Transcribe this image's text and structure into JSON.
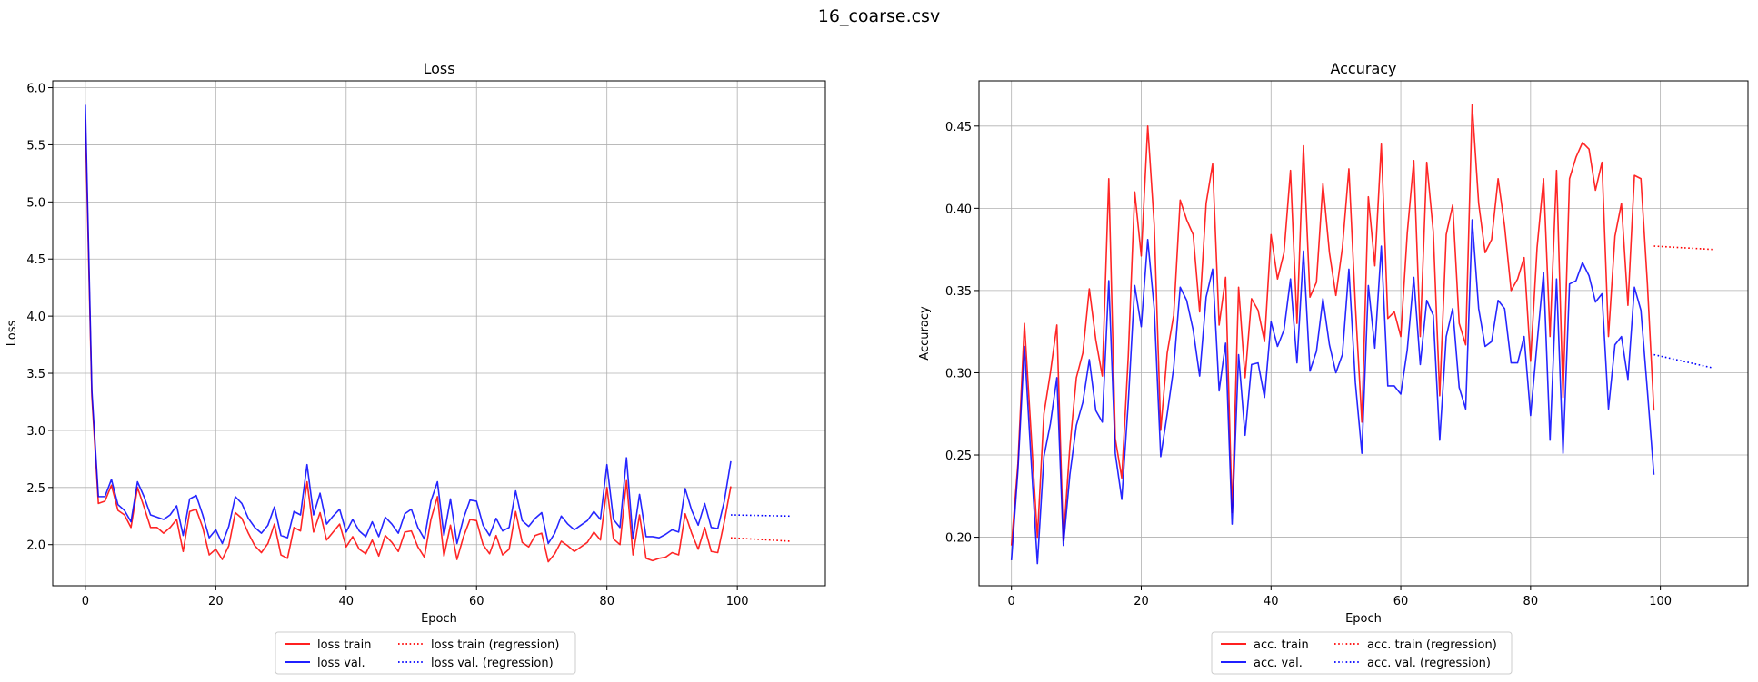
{
  "figure": {
    "title": "16_coarse.csv"
  },
  "chart_data": [
    {
      "type": "line",
      "title": "Loss",
      "xlabel": "Epoch",
      "ylabel": "Loss",
      "xlim": [
        -5,
        113.5
      ],
      "ylim": [
        1.64,
        6.06
      ],
      "xticks": [
        0,
        20,
        40,
        60,
        80,
        100
      ],
      "yticks": [
        2.0,
        2.5,
        3.0,
        3.5,
        4.0,
        4.5,
        5.0,
        5.5,
        6.0
      ],
      "ytick_labels": [
        "2.0",
        "2.5",
        "3.0",
        "3.5",
        "4.0",
        "4.5",
        "5.0",
        "5.5",
        "6.0"
      ],
      "grid": true,
      "legend_position": "below",
      "series": [
        {
          "name": "loss train",
          "color": "#ff0000",
          "style": "solid",
          "values": [
            5.72,
            3.3,
            2.36,
            2.38,
            2.52,
            2.3,
            2.26,
            2.15,
            2.5,
            2.33,
            2.15,
            2.15,
            2.1,
            2.15,
            2.22,
            1.94,
            2.29,
            2.31,
            2.15,
            1.91,
            1.96,
            1.87,
            1.99,
            2.28,
            2.23,
            2.1,
            1.99,
            1.93,
            2.01,
            2.18,
            1.91,
            1.88,
            2.15,
            2.12,
            2.55,
            2.11,
            2.28,
            2.04,
            2.11,
            2.18,
            1.98,
            2.07,
            1.96,
            1.92,
            2.04,
            1.9,
            2.08,
            2.02,
            1.94,
            2.11,
            2.12,
            1.98,
            1.89,
            2.22,
            2.42,
            1.9,
            2.17,
            1.87,
            2.07,
            2.22,
            2.21,
            2.0,
            1.92,
            2.08,
            1.91,
            1.96,
            2.29,
            2.02,
            1.98,
            2.08,
            2.1,
            1.85,
            1.92,
            2.03,
            1.99,
            1.94,
            1.98,
            2.02,
            2.11,
            2.04,
            2.5,
            2.05,
            2.0,
            2.56,
            1.91,
            2.26,
            1.88,
            1.86,
            1.88,
            1.89,
            1.93,
            1.91,
            2.27,
            2.1,
            1.96,
            2.15,
            1.94,
            1.93,
            2.2,
            2.51
          ]
        },
        {
          "name": "loss val.",
          "color": "#0000ff",
          "style": "solid",
          "values": [
            5.85,
            3.35,
            2.42,
            2.42,
            2.57,
            2.35,
            2.3,
            2.2,
            2.55,
            2.42,
            2.26,
            2.24,
            2.22,
            2.26,
            2.34,
            2.08,
            2.4,
            2.43,
            2.26,
            2.06,
            2.13,
            2.01,
            2.16,
            2.42,
            2.36,
            2.23,
            2.15,
            2.1,
            2.17,
            2.33,
            2.08,
            2.06,
            2.29,
            2.26,
            2.7,
            2.26,
            2.45,
            2.18,
            2.25,
            2.31,
            2.11,
            2.22,
            2.12,
            2.07,
            2.2,
            2.07,
            2.24,
            2.18,
            2.1,
            2.27,
            2.31,
            2.15,
            2.05,
            2.38,
            2.55,
            2.08,
            2.4,
            2.01,
            2.23,
            2.39,
            2.38,
            2.17,
            2.08,
            2.23,
            2.12,
            2.15,
            2.47,
            2.21,
            2.16,
            2.23,
            2.28,
            2.01,
            2.1,
            2.25,
            2.18,
            2.13,
            2.17,
            2.21,
            2.29,
            2.22,
            2.7,
            2.22,
            2.15,
            2.76,
            2.05,
            2.44,
            2.07,
            2.07,
            2.06,
            2.09,
            2.13,
            2.11,
            2.49,
            2.3,
            2.17,
            2.36,
            2.15,
            2.14,
            2.38,
            2.73
          ]
        },
        {
          "name": "loss train (regression)",
          "color": "#ff0000",
          "style": "dotted",
          "x": [
            99,
            108
          ],
          "values": [
            2.06,
            2.03
          ]
        },
        {
          "name": "loss val. (regression)",
          "color": "#0000ff",
          "style": "dotted",
          "x": [
            99,
            108
          ],
          "values": [
            2.26,
            2.25
          ]
        }
      ]
    },
    {
      "type": "line",
      "title": "Accuracy",
      "xlabel": "Epoch",
      "ylabel": "Accuracy",
      "xlim": [
        -5,
        113.5
      ],
      "ylim": [
        0.1705,
        0.4775
      ],
      "xticks": [
        0,
        20,
        40,
        60,
        80,
        100
      ],
      "yticks": [
        0.2,
        0.25,
        0.3,
        0.35,
        0.4,
        0.45
      ],
      "ytick_labels": [
        "0.20",
        "0.25",
        "0.30",
        "0.35",
        "0.40",
        "0.45"
      ],
      "grid": true,
      "legend_position": "below",
      "series": [
        {
          "name": "acc. train",
          "color": "#ff0000",
          "style": "solid",
          "values": [
            0.195,
            0.245,
            0.33,
            0.265,
            0.2,
            0.275,
            0.3,
            0.329,
            0.198,
            0.255,
            0.297,
            0.312,
            0.351,
            0.32,
            0.298,
            0.418,
            0.26,
            0.236,
            0.31,
            0.41,
            0.371,
            0.45,
            0.39,
            0.265,
            0.312,
            0.335,
            0.405,
            0.393,
            0.384,
            0.337,
            0.403,
            0.427,
            0.329,
            0.358,
            0.215,
            0.352,
            0.297,
            0.345,
            0.338,
            0.319,
            0.384,
            0.357,
            0.373,
            0.423,
            0.33,
            0.438,
            0.346,
            0.355,
            0.415,
            0.373,
            0.347,
            0.376,
            0.424,
            0.341,
            0.27,
            0.407,
            0.365,
            0.439,
            0.333,
            0.337,
            0.322,
            0.385,
            0.429,
            0.322,
            0.428,
            0.386,
            0.286,
            0.384,
            0.402,
            0.33,
            0.317,
            0.463,
            0.403,
            0.373,
            0.381,
            0.418,
            0.389,
            0.35,
            0.357,
            0.37,
            0.307,
            0.376,
            0.418,
            0.322,
            0.423,
            0.285,
            0.418,
            0.431,
            0.44,
            0.436,
            0.411,
            0.428,
            0.322,
            0.383,
            0.403,
            0.341,
            0.42,
            0.418,
            0.354,
            0.277
          ]
        },
        {
          "name": "acc. val.",
          "color": "#0000ff",
          "style": "solid",
          "values": [
            0.186,
            0.241,
            0.316,
            0.249,
            0.184,
            0.249,
            0.269,
            0.297,
            0.195,
            0.238,
            0.268,
            0.282,
            0.308,
            0.277,
            0.27,
            0.356,
            0.251,
            0.223,
            0.282,
            0.353,
            0.328,
            0.381,
            0.339,
            0.249,
            0.275,
            0.303,
            0.352,
            0.344,
            0.326,
            0.298,
            0.346,
            0.363,
            0.289,
            0.318,
            0.208,
            0.311,
            0.262,
            0.305,
            0.306,
            0.285,
            0.331,
            0.316,
            0.326,
            0.357,
            0.306,
            0.374,
            0.301,
            0.313,
            0.345,
            0.317,
            0.3,
            0.311,
            0.363,
            0.294,
            0.251,
            0.353,
            0.315,
            0.377,
            0.292,
            0.292,
            0.287,
            0.314,
            0.358,
            0.305,
            0.344,
            0.335,
            0.259,
            0.322,
            0.339,
            0.291,
            0.278,
            0.393,
            0.339,
            0.316,
            0.319,
            0.344,
            0.339,
            0.306,
            0.306,
            0.322,
            0.274,
            0.318,
            0.361,
            0.259,
            0.357,
            0.251,
            0.354,
            0.356,
            0.367,
            0.359,
            0.343,
            0.348,
            0.278,
            0.317,
            0.322,
            0.296,
            0.352,
            0.338,
            0.289,
            0.238
          ]
        },
        {
          "name": "acc. train (regression)",
          "color": "#ff0000",
          "style": "dotted",
          "x": [
            99,
            108
          ],
          "values": [
            0.377,
            0.375
          ]
        },
        {
          "name": "acc. val. (regression)",
          "color": "#0000ff",
          "style": "dotted",
          "x": [
            99,
            108
          ],
          "values": [
            0.311,
            0.303
          ]
        }
      ]
    }
  ]
}
